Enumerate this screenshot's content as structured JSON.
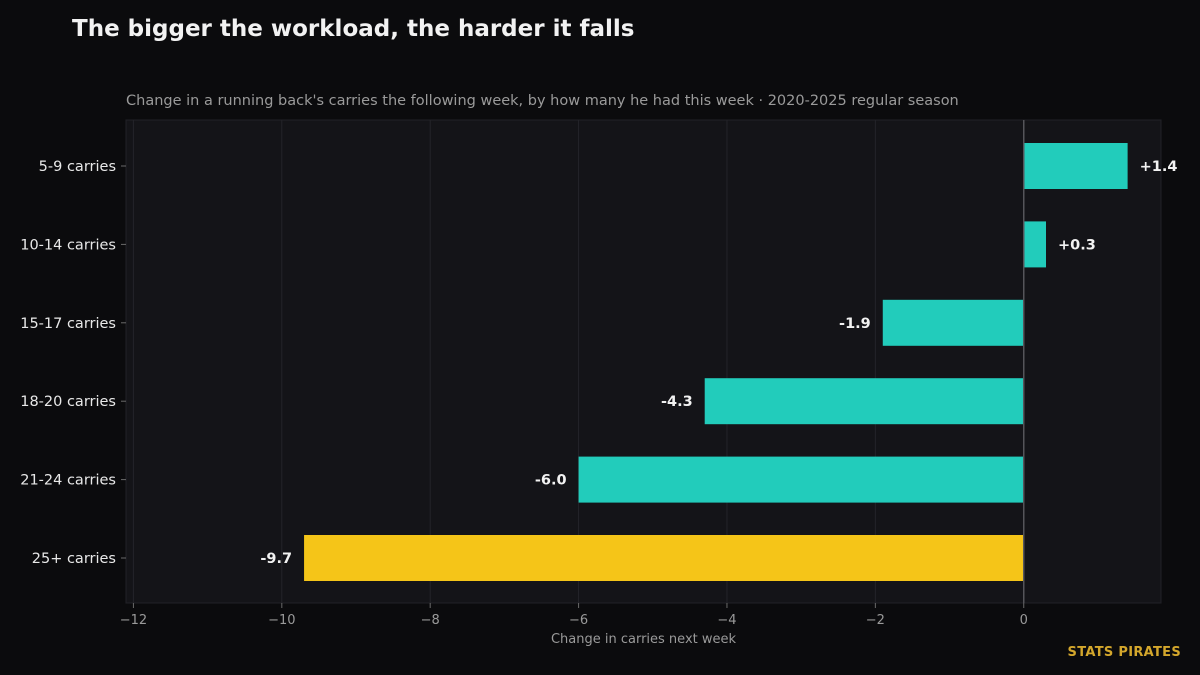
{
  "title": "The bigger the workload, the harder it falls",
  "subtitle": "Change in a running back's carries the following week, by how many he had this week · 2020-2025 regular season",
  "brand": "STATS PIRATES",
  "colors": {
    "background": "#0b0b0d",
    "plot_background": "#141418",
    "bar_default": "#22ccbb",
    "bar_highlight": "#f5c518"
  },
  "chart_data": {
    "type": "bar",
    "orientation": "horizontal",
    "categories": [
      "5-9 carries",
      "10-14 carries",
      "15-17 carries",
      "18-20 carries",
      "21-24 carries",
      "25+ carries"
    ],
    "values": [
      1.4,
      0.3,
      -1.9,
      -4.3,
      -6.0,
      -9.7
    ],
    "value_labels": [
      "+1.4",
      "+0.3",
      "-1.9",
      "-4.3",
      "-6.0",
      "-9.7"
    ],
    "highlight_index": 5,
    "xlabel": "Change in carries next week",
    "ylabel": "",
    "xlim": [
      -12.1,
      1.85
    ],
    "xticks": [
      -12,
      -10,
      -8,
      -6,
      -4,
      -2,
      0
    ],
    "xtick_labels": [
      "−12",
      "−10",
      "−8",
      "−6",
      "−4",
      "−2",
      "0"
    ],
    "grid": "vertical",
    "reference_line": 0
  }
}
